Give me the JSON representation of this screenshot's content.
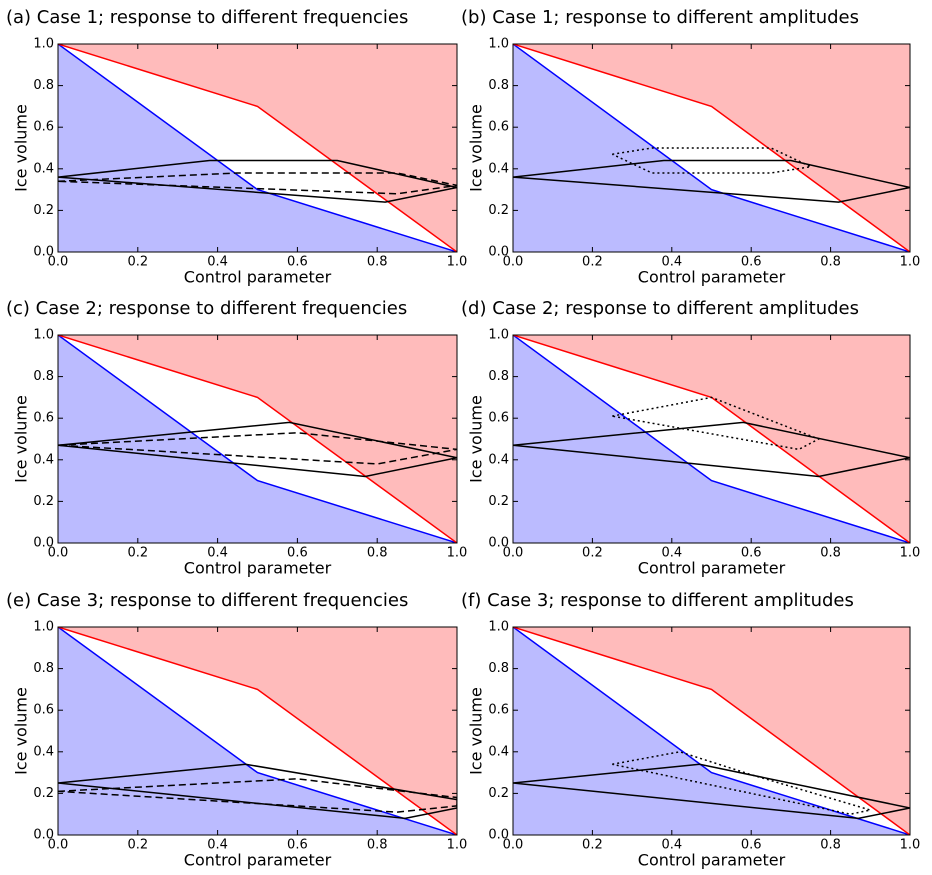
{
  "chart_data": [
    {
      "type": "line",
      "title": "(a) Case 1; response to different frequencies",
      "xlabel": "Control parameter",
      "ylabel": "Ice volume",
      "xlim": [
        0,
        1
      ],
      "ylim": [
        0,
        1
      ],
      "xticks": [
        {
          "value": 0,
          "label": "0.0"
        },
        {
          "value": 0.2,
          "label": "0.2"
        },
        {
          "value": 0.4,
          "label": "0.4"
        },
        {
          "value": 0.6,
          "label": "0.6"
        },
        {
          "value": 0.8,
          "label": "0.8"
        },
        {
          "value": 1,
          "label": "1.0"
        }
      ],
      "yticks": [
        {
          "value": 0,
          "label": "0.0"
        },
        {
          "value": 0.2,
          "label": "0.2"
        },
        {
          "value": 0.4,
          "label": "0.4"
        },
        {
          "value": 0.6,
          "label": "0.6"
        },
        {
          "value": 0.8,
          "label": "0.8"
        },
        {
          "value": 1,
          "label": "1.0"
        }
      ],
      "series": [
        {
          "color": "#0000ff",
          "fill": "below",
          "fill_color": "#bbbbff",
          "style": "solid",
          "x": [
            0,
            0.5,
            1
          ],
          "values": [
            1,
            0.3,
            0
          ]
        },
        {
          "color": "#ff0000",
          "fill": "above",
          "fill_color": "#ffbbbb",
          "style": "solid",
          "x": [
            0,
            0.5,
            1
          ],
          "values": [
            1,
            0.7,
            0
          ]
        },
        {
          "color": "#000000",
          "style": "solid",
          "x": [
            0,
            0.38,
            0.7,
            1,
            0.82,
            0
          ],
          "values": [
            0.36,
            0.44,
            0.44,
            0.31,
            0.24,
            0.36
          ]
        },
        {
          "color": "#000000",
          "style": "dashed",
          "x": [
            0,
            0.45,
            0.85,
            1,
            0.85,
            0
          ],
          "values": [
            0.34,
            0.38,
            0.38,
            0.32,
            0.28,
            0.34
          ]
        }
      ]
    },
    {
      "type": "line",
      "title": "(b) Case 1; response to different amplitudes",
      "xlabel": "Control parameter",
      "ylabel": "Ice volume",
      "xlim": [
        0,
        1
      ],
      "ylim": [
        0,
        1
      ],
      "xticks": [
        {
          "value": 0,
          "label": "0.0"
        },
        {
          "value": 0.2,
          "label": "0.2"
        },
        {
          "value": 0.4,
          "label": "0.4"
        },
        {
          "value": 0.6,
          "label": "0.6"
        },
        {
          "value": 0.8,
          "label": "0.8"
        },
        {
          "value": 1,
          "label": "1.0"
        }
      ],
      "yticks": [
        {
          "value": 0,
          "label": "0.0"
        },
        {
          "value": 0.2,
          "label": "0.2"
        },
        {
          "value": 0.4,
          "label": "0.4"
        },
        {
          "value": 0.6,
          "label": "0.6"
        },
        {
          "value": 0.8,
          "label": "0.8"
        },
        {
          "value": 1,
          "label": "1.0"
        }
      ],
      "series": [
        {
          "color": "#0000ff",
          "fill": "below",
          "fill_color": "#bbbbff",
          "style": "solid",
          "x": [
            0,
            0.5,
            1
          ],
          "values": [
            1,
            0.3,
            0
          ]
        },
        {
          "color": "#ff0000",
          "fill": "above",
          "fill_color": "#ffbbbb",
          "style": "solid",
          "x": [
            0,
            0.5,
            1
          ],
          "values": [
            1,
            0.7,
            0
          ]
        },
        {
          "color": "#000000",
          "style": "solid",
          "x": [
            0,
            0.38,
            0.7,
            1,
            0.82,
            0
          ],
          "values": [
            0.36,
            0.44,
            0.44,
            0.31,
            0.24,
            0.36
          ]
        },
        {
          "color": "#000000",
          "style": "dotted",
          "x": [
            0.25,
            0.35,
            0.65,
            0.75,
            0.65,
            0.35,
            0.25
          ],
          "values": [
            0.47,
            0.5,
            0.5,
            0.41,
            0.38,
            0.38,
            0.47
          ]
        }
      ]
    },
    {
      "type": "line",
      "title": "(c) Case 2; response to different frequencies",
      "xlabel": "Control parameter",
      "ylabel": "Ice volume",
      "xlim": [
        0,
        1
      ],
      "ylim": [
        0,
        1
      ],
      "xticks": [
        {
          "value": 0,
          "label": "0.0"
        },
        {
          "value": 0.2,
          "label": "0.2"
        },
        {
          "value": 0.4,
          "label": "0.4"
        },
        {
          "value": 0.6,
          "label": "0.6"
        },
        {
          "value": 0.8,
          "label": "0.8"
        },
        {
          "value": 1,
          "label": "1.0"
        }
      ],
      "yticks": [
        {
          "value": 0,
          "label": "0.0"
        },
        {
          "value": 0.2,
          "label": "0.2"
        },
        {
          "value": 0.4,
          "label": "0.4"
        },
        {
          "value": 0.6,
          "label": "0.6"
        },
        {
          "value": 0.8,
          "label": "0.8"
        },
        {
          "value": 1,
          "label": "1.0"
        }
      ],
      "series": [
        {
          "color": "#0000ff",
          "fill": "below",
          "fill_color": "#bbbbff",
          "style": "solid",
          "x": [
            0,
            0.5,
            1
          ],
          "values": [
            1,
            0.3,
            0
          ]
        },
        {
          "color": "#ff0000",
          "fill": "above",
          "fill_color": "#ffbbbb",
          "style": "solid",
          "x": [
            0,
            0.5,
            1
          ],
          "values": [
            1,
            0.7,
            0
          ]
        },
        {
          "color": "#000000",
          "style": "solid",
          "x": [
            0,
            0.58,
            1,
            0.77,
            0
          ],
          "values": [
            0.47,
            0.58,
            0.41,
            0.32,
            0.47
          ]
        },
        {
          "color": "#000000",
          "style": "dashed",
          "x": [
            0,
            0.6,
            1,
            0.8,
            0
          ],
          "values": [
            0.47,
            0.53,
            0.45,
            0.38,
            0.47
          ]
        }
      ]
    },
    {
      "type": "line",
      "title": "(d) Case 2; response to different amplitudes",
      "xlabel": "Control parameter",
      "ylabel": "Ice volume",
      "xlim": [
        0,
        1
      ],
      "ylim": [
        0,
        1
      ],
      "xticks": [
        {
          "value": 0,
          "label": "0.0"
        },
        {
          "value": 0.2,
          "label": "0.2"
        },
        {
          "value": 0.4,
          "label": "0.4"
        },
        {
          "value": 0.6,
          "label": "0.6"
        },
        {
          "value": 0.8,
          "label": "0.8"
        },
        {
          "value": 1,
          "label": "1.0"
        }
      ],
      "yticks": [
        {
          "value": 0,
          "label": "0.0"
        },
        {
          "value": 0.2,
          "label": "0.2"
        },
        {
          "value": 0.4,
          "label": "0.4"
        },
        {
          "value": 0.6,
          "label": "0.6"
        },
        {
          "value": 0.8,
          "label": "0.8"
        },
        {
          "value": 1,
          "label": "1.0"
        }
      ],
      "series": [
        {
          "color": "#0000ff",
          "fill": "below",
          "fill_color": "#bbbbff",
          "style": "solid",
          "x": [
            0,
            0.5,
            1
          ],
          "values": [
            1,
            0.3,
            0
          ]
        },
        {
          "color": "#ff0000",
          "fill": "above",
          "fill_color": "#ffbbbb",
          "style": "solid",
          "x": [
            0,
            0.5,
            1
          ],
          "values": [
            1,
            0.7,
            0
          ]
        },
        {
          "color": "#000000",
          "style": "solid",
          "x": [
            0,
            0.58,
            1,
            0.77,
            0
          ],
          "values": [
            0.47,
            0.58,
            0.41,
            0.32,
            0.47
          ]
        },
        {
          "color": "#000000",
          "style": "dotted",
          "x": [
            0.25,
            0.5,
            0.77,
            0.72,
            0.25
          ],
          "values": [
            0.61,
            0.7,
            0.5,
            0.45,
            0.61
          ]
        }
      ]
    },
    {
      "type": "line",
      "title": "(e) Case 3; response to different frequencies",
      "xlabel": "Control parameter",
      "ylabel": "Ice volume",
      "xlim": [
        0,
        1
      ],
      "ylim": [
        0,
        1
      ],
      "xticks": [
        {
          "value": 0,
          "label": "0.0"
        },
        {
          "value": 0.2,
          "label": "0.2"
        },
        {
          "value": 0.4,
          "label": "0.4"
        },
        {
          "value": 0.6,
          "label": "0.6"
        },
        {
          "value": 0.8,
          "label": "0.8"
        },
        {
          "value": 1,
          "label": "1.0"
        }
      ],
      "yticks": [
        {
          "value": 0,
          "label": "0.0"
        },
        {
          "value": 0.2,
          "label": "0.2"
        },
        {
          "value": 0.4,
          "label": "0.4"
        },
        {
          "value": 0.6,
          "label": "0.6"
        },
        {
          "value": 0.8,
          "label": "0.8"
        },
        {
          "value": 1,
          "label": "1.0"
        }
      ],
      "series": [
        {
          "color": "#0000ff",
          "fill": "below",
          "fill_color": "#bbbbff",
          "style": "solid",
          "x": [
            0,
            0.5,
            1
          ],
          "values": [
            1,
            0.3,
            0
          ]
        },
        {
          "color": "#ff0000",
          "fill": "above",
          "fill_color": "#ffbbbb",
          "style": "solid",
          "x": [
            0,
            0.5,
            1
          ],
          "values": [
            1,
            0.7,
            0
          ]
        },
        {
          "color": "#000000",
          "style": "solid",
          "x": [
            0,
            0.47,
            1,
            1,
            0.87,
            0
          ],
          "values": [
            0.25,
            0.34,
            0.17,
            0.13,
            0.08,
            0.25
          ]
        },
        {
          "color": "#000000",
          "style": "dashed",
          "x": [
            0,
            0.6,
            1,
            1,
            0.85,
            0
          ],
          "values": [
            0.21,
            0.27,
            0.18,
            0.14,
            0.11,
            0.21
          ]
        }
      ]
    },
    {
      "type": "line",
      "title": "(f) Case 3; response to different amplitudes",
      "xlabel": "Control parameter",
      "ylabel": "Ice volume",
      "xlim": [
        0,
        1
      ],
      "ylim": [
        0,
        1
      ],
      "xticks": [
        {
          "value": 0,
          "label": "0.0"
        },
        {
          "value": 0.2,
          "label": "0.2"
        },
        {
          "value": 0.4,
          "label": "0.4"
        },
        {
          "value": 0.6,
          "label": "0.6"
        },
        {
          "value": 0.8,
          "label": "0.8"
        },
        {
          "value": 1,
          "label": "1.0"
        }
      ],
      "yticks": [
        {
          "value": 0,
          "label": "0.0"
        },
        {
          "value": 0.2,
          "label": "0.2"
        },
        {
          "value": 0.4,
          "label": "0.4"
        },
        {
          "value": 0.6,
          "label": "0.6"
        },
        {
          "value": 0.8,
          "label": "0.8"
        },
        {
          "value": 1,
          "label": "1.0"
        }
      ],
      "series": [
        {
          "color": "#0000ff",
          "fill": "below",
          "fill_color": "#bbbbff",
          "style": "solid",
          "x": [
            0,
            0.5,
            1
          ],
          "values": [
            1,
            0.3,
            0
          ]
        },
        {
          "color": "#ff0000",
          "fill": "above",
          "fill_color": "#ffbbbb",
          "style": "solid",
          "x": [
            0,
            0.5,
            1
          ],
          "values": [
            1,
            0.7,
            0
          ]
        },
        {
          "color": "#000000",
          "style": "solid",
          "x": [
            0,
            0.47,
            1,
            1,
            0.87,
            0
          ],
          "values": [
            0.25,
            0.34,
            0.13,
            0.13,
            0.08,
            0.25
          ]
        },
        {
          "color": "#000000",
          "style": "dotted",
          "x": [
            0.25,
            0.42,
            0.6,
            0.9,
            0.85,
            0.25
          ],
          "values": [
            0.34,
            0.4,
            0.29,
            0.12,
            0.1,
            0.34
          ]
        }
      ]
    }
  ]
}
